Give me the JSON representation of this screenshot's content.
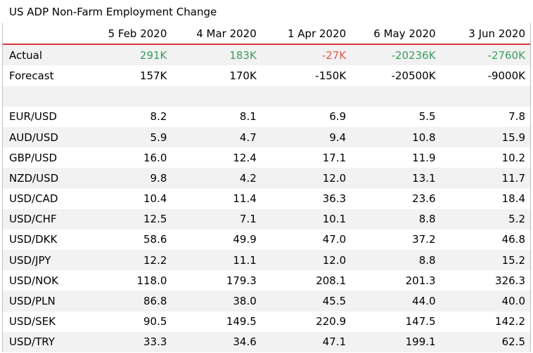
{
  "title": "US ADP Non-Farm Employment Change",
  "columns": [
    "5 Feb 2020",
    "4 Mar 2020",
    "1 Apr 2020",
    "6 May 2020",
    "3 Jun 2020"
  ],
  "colors": {
    "header_rule": "#d43a3a",
    "positive": "#3a9d5d",
    "negative": "#e0594a",
    "band": "#f2f2f2"
  },
  "actual": {
    "label": "Actual",
    "values": [
      "291K",
      "183K",
      "-27K",
      "-20236K",
      "-2760K"
    ]
  },
  "forecast": {
    "label": "Forecast",
    "values": [
      "157K",
      "170K",
      "-150K",
      "-20500K",
      "-9000K"
    ]
  },
  "pairs": [
    {
      "name": "EUR/USD",
      "values": [
        "8.2",
        "8.1",
        "6.9",
        "5.5",
        "7.8"
      ]
    },
    {
      "name": "AUD/USD",
      "values": [
        "5.9",
        "4.7",
        "9.4",
        "10.8",
        "15.9"
      ]
    },
    {
      "name": "GBP/USD",
      "values": [
        "16.0",
        "12.4",
        "17.1",
        "11.9",
        "10.2"
      ]
    },
    {
      "name": "NZD/USD",
      "values": [
        "9.8",
        "4.2",
        "12.0",
        "13.1",
        "11.7"
      ]
    },
    {
      "name": "USD/CAD",
      "values": [
        "10.4",
        "11.4",
        "36.3",
        "23.6",
        "18.4"
      ]
    },
    {
      "name": "USD/CHF",
      "values": [
        "12.5",
        "7.1",
        "10.1",
        "8.8",
        "5.2"
      ]
    },
    {
      "name": "USD/DKK",
      "values": [
        "58.6",
        "49.9",
        "47.0",
        "37.2",
        "46.8"
      ]
    },
    {
      "name": "USD/JPY",
      "values": [
        "12.2",
        "11.1",
        "12.0",
        "8.8",
        "15.2"
      ]
    },
    {
      "name": "USD/NOK",
      "values": [
        "118.0",
        "179.3",
        "208.1",
        "201.3",
        "326.3"
      ]
    },
    {
      "name": "USD/PLN",
      "values": [
        "86.8",
        "38.0",
        "45.5",
        "44.0",
        "40.0"
      ]
    },
    {
      "name": "USD/SEK",
      "values": [
        "90.5",
        "149.5",
        "220.9",
        "147.5",
        "142.2"
      ]
    },
    {
      "name": "USD/TRY",
      "values": [
        "33.3",
        "34.6",
        "47.1",
        "199.1",
        "62.5"
      ]
    }
  ]
}
